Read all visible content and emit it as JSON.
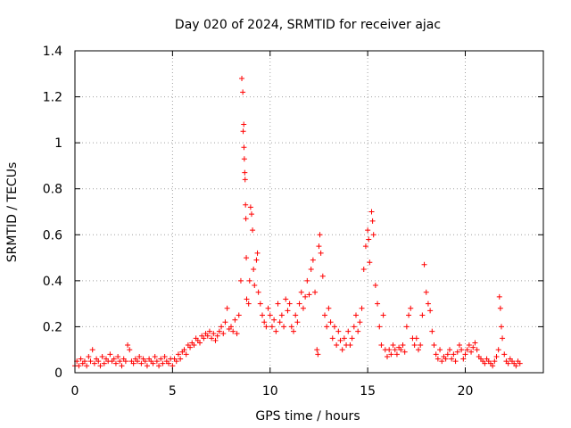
{
  "chart_data": {
    "type": "scatter",
    "title": "Day 020 of 2024, SRMTID for receiver ajac",
    "xlabel": "GPS time / hours",
    "ylabel": "SRMTID / TECUs",
    "xlim": [
      0,
      24
    ],
    "ylim": [
      0,
      1.4
    ],
    "xticks": [
      0,
      5,
      10,
      15,
      20
    ],
    "xtick_labels": [
      "0",
      "5",
      "10",
      "15",
      "20"
    ],
    "yticks": [
      0,
      0.2,
      0.4,
      0.6,
      0.8,
      1.0,
      1.2,
      1.4
    ],
    "ytick_labels": [
      "0",
      "0.2",
      "0.4",
      "0.6",
      "0.8",
      "1",
      "1.2",
      "1.4"
    ],
    "grid": true,
    "marker": "+",
    "series": [
      {
        "name": "SRMTID",
        "color": "#ff0000",
        "points": [
          [
            0.0,
            0.03
          ],
          [
            0.1,
            0.05
          ],
          [
            0.2,
            0.03
          ],
          [
            0.3,
            0.06
          ],
          [
            0.4,
            0.04
          ],
          [
            0.5,
            0.05
          ],
          [
            0.6,
            0.03
          ],
          [
            0.7,
            0.07
          ],
          [
            0.8,
            0.05
          ],
          [
            0.9,
            0.1
          ],
          [
            1.0,
            0.04
          ],
          [
            1.1,
            0.06
          ],
          [
            1.2,
            0.05
          ],
          [
            1.3,
            0.03
          ],
          [
            1.4,
            0.07
          ],
          [
            1.5,
            0.04
          ],
          [
            1.6,
            0.06
          ],
          [
            1.7,
            0.05
          ],
          [
            1.8,
            0.08
          ],
          [
            1.9,
            0.05
          ],
          [
            2.0,
            0.06
          ],
          [
            2.1,
            0.04
          ],
          [
            2.2,
            0.07
          ],
          [
            2.3,
            0.05
          ],
          [
            2.4,
            0.03
          ],
          [
            2.5,
            0.06
          ],
          [
            2.6,
            0.05
          ],
          [
            2.7,
            0.12
          ],
          [
            2.8,
            0.1
          ],
          [
            2.9,
            0.05
          ],
          [
            3.0,
            0.04
          ],
          [
            3.1,
            0.06
          ],
          [
            3.2,
            0.05
          ],
          [
            3.3,
            0.07
          ],
          [
            3.4,
            0.04
          ],
          [
            3.5,
            0.06
          ],
          [
            3.6,
            0.05
          ],
          [
            3.7,
            0.03
          ],
          [
            3.8,
            0.06
          ],
          [
            3.9,
            0.05
          ],
          [
            4.0,
            0.04
          ],
          [
            4.1,
            0.07
          ],
          [
            4.2,
            0.05
          ],
          [
            4.3,
            0.03
          ],
          [
            4.4,
            0.06
          ],
          [
            4.5,
            0.04
          ],
          [
            4.6,
            0.07
          ],
          [
            4.7,
            0.05
          ],
          [
            4.8,
            0.04
          ],
          [
            4.9,
            0.06
          ],
          [
            5.0,
            0.03
          ],
          [
            5.1,
            0.06
          ],
          [
            5.2,
            0.05
          ],
          [
            5.3,
            0.08
          ],
          [
            5.4,
            0.06
          ],
          [
            5.5,
            0.09
          ],
          [
            5.6,
            0.1
          ],
          [
            5.7,
            0.08
          ],
          [
            5.8,
            0.12
          ],
          [
            5.9,
            0.11
          ],
          [
            6.0,
            0.13
          ],
          [
            6.1,
            0.12
          ],
          [
            6.2,
            0.15
          ],
          [
            6.3,
            0.14
          ],
          [
            6.4,
            0.13
          ],
          [
            6.5,
            0.16
          ],
          [
            6.6,
            0.15
          ],
          [
            6.7,
            0.17
          ],
          [
            6.8,
            0.16
          ],
          [
            6.9,
            0.18
          ],
          [
            7.0,
            0.15
          ],
          [
            7.1,
            0.17
          ],
          [
            7.2,
            0.14
          ],
          [
            7.3,
            0.16
          ],
          [
            7.4,
            0.18
          ],
          [
            7.5,
            0.2
          ],
          [
            7.6,
            0.17
          ],
          [
            7.7,
            0.22
          ],
          [
            7.8,
            0.28
          ],
          [
            7.9,
            0.19
          ],
          [
            8.0,
            0.2
          ],
          [
            8.1,
            0.18
          ],
          [
            8.2,
            0.23
          ],
          [
            8.3,
            0.17
          ],
          [
            8.4,
            0.25
          ],
          [
            8.5,
            0.4
          ],
          [
            8.55,
            1.28
          ],
          [
            8.6,
            1.22
          ],
          [
            8.62,
            1.05
          ],
          [
            8.65,
            1.08
          ],
          [
            8.66,
            0.98
          ],
          [
            8.68,
            0.93
          ],
          [
            8.7,
            0.87
          ],
          [
            8.72,
            0.84
          ],
          [
            8.74,
            0.73
          ],
          [
            8.76,
            0.67
          ],
          [
            8.78,
            0.5
          ],
          [
            8.8,
            0.32
          ],
          [
            8.9,
            0.3
          ],
          [
            8.95,
            0.4
          ],
          [
            9.0,
            0.72
          ],
          [
            9.05,
            0.69
          ],
          [
            9.1,
            0.62
          ],
          [
            9.15,
            0.45
          ],
          [
            9.2,
            0.38
          ],
          [
            9.3,
            0.49
          ],
          [
            9.35,
            0.52
          ],
          [
            9.4,
            0.35
          ],
          [
            9.5,
            0.3
          ],
          [
            9.6,
            0.25
          ],
          [
            9.7,
            0.22
          ],
          [
            9.8,
            0.2
          ],
          [
            9.9,
            0.28
          ],
          [
            10.0,
            0.25
          ],
          [
            10.1,
            0.2
          ],
          [
            10.2,
            0.23
          ],
          [
            10.3,
            0.18
          ],
          [
            10.4,
            0.3
          ],
          [
            10.5,
            0.22
          ],
          [
            10.6,
            0.25
          ],
          [
            10.7,
            0.2
          ],
          [
            10.8,
            0.32
          ],
          [
            10.9,
            0.27
          ],
          [
            11.0,
            0.3
          ],
          [
            11.1,
            0.2
          ],
          [
            11.2,
            0.18
          ],
          [
            11.3,
            0.25
          ],
          [
            11.4,
            0.22
          ],
          [
            11.5,
            0.3
          ],
          [
            11.6,
            0.35
          ],
          [
            11.7,
            0.28
          ],
          [
            11.8,
            0.33
          ],
          [
            11.9,
            0.4
          ],
          [
            12.0,
            0.34
          ],
          [
            12.1,
            0.45
          ],
          [
            12.2,
            0.49
          ],
          [
            12.3,
            0.35
          ],
          [
            12.4,
            0.1
          ],
          [
            12.45,
            0.08
          ],
          [
            12.5,
            0.55
          ],
          [
            12.55,
            0.6
          ],
          [
            12.6,
            0.52
          ],
          [
            12.7,
            0.42
          ],
          [
            12.8,
            0.25
          ],
          [
            12.9,
            0.2
          ],
          [
            13.0,
            0.28
          ],
          [
            13.1,
            0.22
          ],
          [
            13.2,
            0.15
          ],
          [
            13.3,
            0.2
          ],
          [
            13.4,
            0.12
          ],
          [
            13.5,
            0.18
          ],
          [
            13.6,
            0.14
          ],
          [
            13.7,
            0.1
          ],
          [
            13.8,
            0.15
          ],
          [
            13.9,
            0.12
          ],
          [
            14.0,
            0.18
          ],
          [
            14.1,
            0.12
          ],
          [
            14.2,
            0.15
          ],
          [
            14.3,
            0.2
          ],
          [
            14.4,
            0.25
          ],
          [
            14.5,
            0.18
          ],
          [
            14.6,
            0.22
          ],
          [
            14.7,
            0.28
          ],
          [
            14.8,
            0.45
          ],
          [
            14.9,
            0.55
          ],
          [
            15.0,
            0.62
          ],
          [
            15.05,
            0.58
          ],
          [
            15.1,
            0.48
          ],
          [
            15.2,
            0.7
          ],
          [
            15.25,
            0.66
          ],
          [
            15.3,
            0.6
          ],
          [
            15.4,
            0.38
          ],
          [
            15.5,
            0.3
          ],
          [
            15.6,
            0.2
          ],
          [
            15.7,
            0.12
          ],
          [
            15.8,
            0.25
          ],
          [
            15.9,
            0.1
          ],
          [
            16.0,
            0.07
          ],
          [
            16.1,
            0.1
          ],
          [
            16.2,
            0.08
          ],
          [
            16.3,
            0.12
          ],
          [
            16.4,
            0.1
          ],
          [
            16.5,
            0.08
          ],
          [
            16.6,
            0.11
          ],
          [
            16.7,
            0.1
          ],
          [
            16.8,
            0.12
          ],
          [
            16.9,
            0.09
          ],
          [
            17.0,
            0.2
          ],
          [
            17.1,
            0.25
          ],
          [
            17.2,
            0.28
          ],
          [
            17.3,
            0.15
          ],
          [
            17.4,
            0.12
          ],
          [
            17.5,
            0.15
          ],
          [
            17.6,
            0.1
          ],
          [
            17.7,
            0.12
          ],
          [
            17.8,
            0.25
          ],
          [
            17.9,
            0.47
          ],
          [
            18.0,
            0.35
          ],
          [
            18.1,
            0.3
          ],
          [
            18.2,
            0.27
          ],
          [
            18.3,
            0.18
          ],
          [
            18.4,
            0.12
          ],
          [
            18.5,
            0.08
          ],
          [
            18.6,
            0.06
          ],
          [
            18.7,
            0.1
          ],
          [
            18.8,
            0.05
          ],
          [
            18.9,
            0.07
          ],
          [
            19.0,
            0.06
          ],
          [
            19.1,
            0.08
          ],
          [
            19.2,
            0.1
          ],
          [
            19.3,
            0.06
          ],
          [
            19.4,
            0.08
          ],
          [
            19.5,
            0.05
          ],
          [
            19.6,
            0.09
          ],
          [
            19.7,
            0.12
          ],
          [
            19.8,
            0.1
          ],
          [
            19.9,
            0.06
          ],
          [
            20.0,
            0.08
          ],
          [
            20.1,
            0.1
          ],
          [
            20.2,
            0.12
          ],
          [
            20.3,
            0.09
          ],
          [
            20.4,
            0.11
          ],
          [
            20.5,
            0.13
          ],
          [
            20.6,
            0.1
          ],
          [
            20.7,
            0.07
          ],
          [
            20.8,
            0.06
          ],
          [
            20.9,
            0.05
          ],
          [
            21.0,
            0.04
          ],
          [
            21.1,
            0.06
          ],
          [
            21.2,
            0.05
          ],
          [
            21.3,
            0.04
          ],
          [
            21.4,
            0.03
          ],
          [
            21.5,
            0.05
          ],
          [
            21.6,
            0.07
          ],
          [
            21.7,
            0.1
          ],
          [
            21.75,
            0.33
          ],
          [
            21.8,
            0.28
          ],
          [
            21.85,
            0.2
          ],
          [
            21.9,
            0.15
          ],
          [
            22.0,
            0.08
          ],
          [
            22.1,
            0.05
          ],
          [
            22.2,
            0.04
          ],
          [
            22.3,
            0.06
          ],
          [
            22.4,
            0.05
          ],
          [
            22.5,
            0.04
          ],
          [
            22.6,
            0.03
          ],
          [
            22.7,
            0.05
          ],
          [
            22.8,
            0.04
          ]
        ]
      }
    ]
  }
}
